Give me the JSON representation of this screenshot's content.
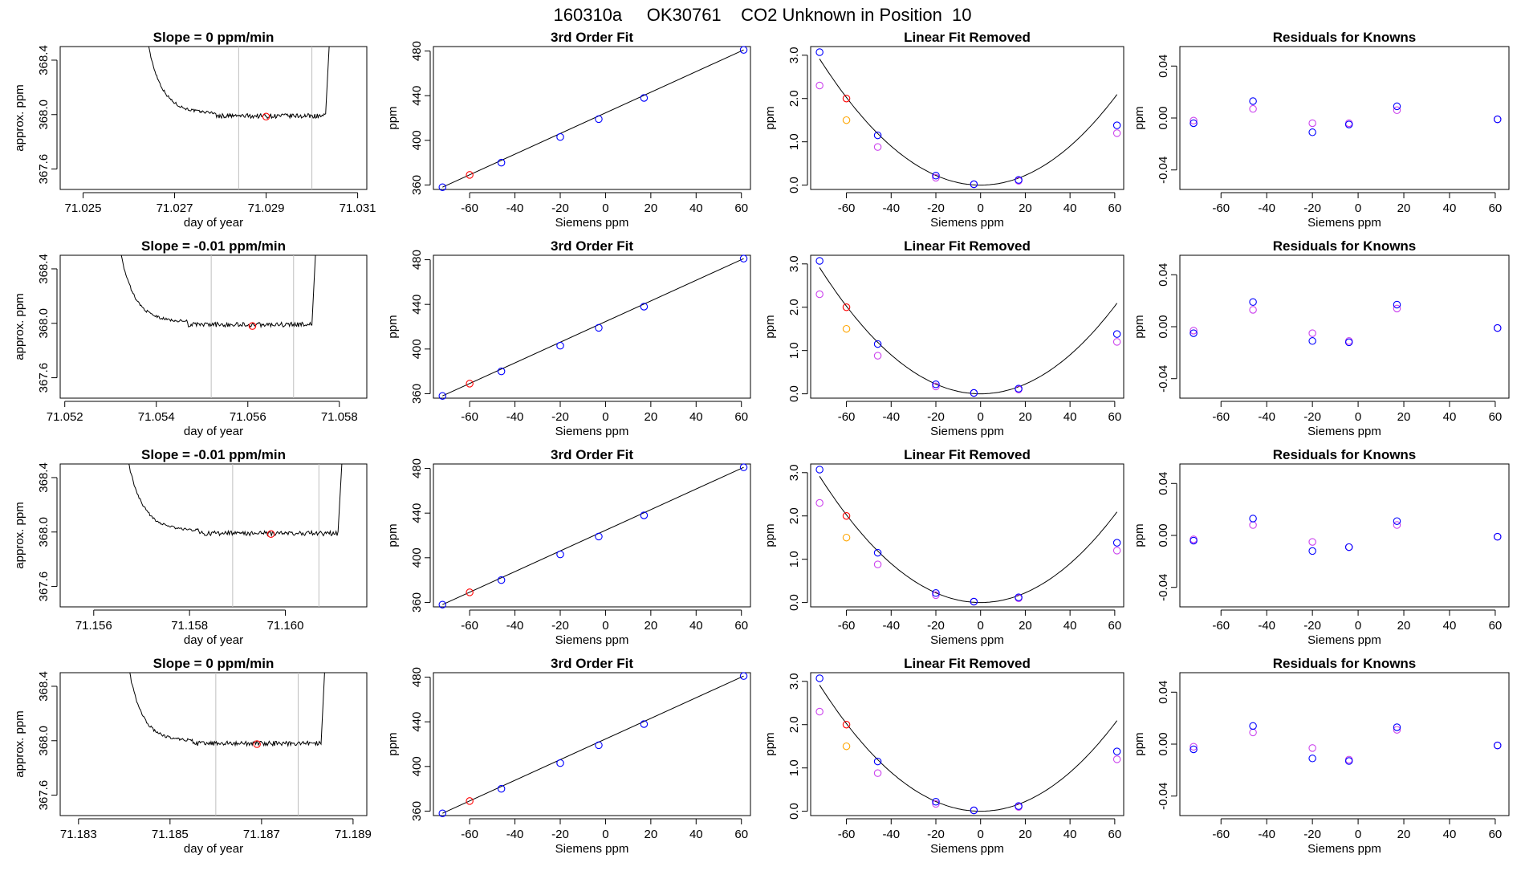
{
  "page_title": "160310a     OK30761    CO2 Unknown in Position  10",
  "colors": {
    "axis": "#000000",
    "trace": "#000000",
    "vline": "#bfbfbf",
    "known_point": "#0000ff",
    "marked_point": "#ff0000",
    "cubic_point": "#cc44ee",
    "orange_point": "#ffa500",
    "fit_line": "#000000"
  },
  "rows": [
    {
      "trace": {
        "title": "Slope =  0  ppm/min",
        "xlabel": "day of year",
        "ylabel": "approx. ppm",
        "xticks": [
          "71.025",
          "71.027",
          "71.029",
          "71.031"
        ],
        "yticks": [
          "367.6",
          "368.0",
          "368.4"
        ],
        "xlim": [
          71.0245,
          71.0312
        ],
        "ylim": [
          367.45,
          368.5
        ],
        "vlines": [
          71.0284,
          71.03
        ],
        "marked_point": {
          "x": 71.029,
          "y": 367.985
        },
        "trace_start": 71.0263,
        "trace_end": 71.0303,
        "plateau": 367.99,
        "drop_x": 71.0279
      },
      "fit": {
        "title": "3rd Order Fit",
        "xlabel": "Siemens ppm",
        "ylabel": "ppm",
        "xticks": [
          "-60",
          "-40",
          "-20",
          "0",
          "20",
          "40",
          "60"
        ],
        "yticks": [
          "360",
          "400",
          "440",
          "480"
        ]
      },
      "linear": {
        "title": "Linear Fit Removed",
        "xlabel": "Siemens ppm",
        "ylabel": "ppm",
        "xticks": [
          "-60",
          "-40",
          "-20",
          "0",
          "20",
          "40",
          "60"
        ],
        "yticks": [
          "0.0",
          "1.0",
          "2.0",
          "3.0"
        ]
      },
      "residuals": {
        "title": "Residuals for Knowns",
        "xlabel": "Siemens ppm",
        "ylabel": "ppm",
        "xticks": [
          "-60",
          "-40",
          "-20",
          "0",
          "20",
          "40",
          "60"
        ],
        "yticks": [
          "-0.04",
          "0.00",
          "0.04"
        ],
        "blue": [
          [
            -72,
            -0.004
          ],
          [
            -46,
            0.013
          ],
          [
            -20,
            -0.011
          ],
          [
            -4,
            -0.005
          ],
          [
            17,
            0.009
          ],
          [
            61,
            -0.001
          ]
        ],
        "violet": [
          [
            -72,
            -0.002
          ],
          [
            -46,
            0.007
          ],
          [
            -20,
            -0.004
          ],
          [
            -4,
            -0.004
          ],
          [
            17,
            0.006
          ],
          [
            61,
            -0.001
          ]
        ]
      }
    },
    {
      "trace": {
        "title": "Slope =  -0.01  ppm/min",
        "xlabel": "day of year",
        "ylabel": "approx. ppm",
        "xticks": [
          "71.052",
          "71.054",
          "71.056",
          "71.058"
        ],
        "yticks": [
          "367.6",
          "368.0",
          "368.4"
        ],
        "xlim": [
          71.0519,
          71.0586
        ],
        "ylim": [
          367.45,
          368.5
        ],
        "vlines": [
          71.0552,
          71.057
        ],
        "marked_point": {
          "x": 71.0561,
          "y": 367.98
        },
        "trace_start": 71.0531,
        "trace_end": 71.0574,
        "plateau": 367.99,
        "drop_x": 71.0547
      },
      "fit": {
        "title": "3rd Order Fit",
        "xlabel": "Siemens ppm",
        "ylabel": "ppm",
        "xticks": [
          "-60",
          "-40",
          "-20",
          "0",
          "20",
          "40",
          "60"
        ],
        "yticks": [
          "360",
          "400",
          "440",
          "480"
        ]
      },
      "linear": {
        "title": "Linear Fit Removed",
        "xlabel": "Siemens ppm",
        "ylabel": "ppm",
        "xticks": [
          "-60",
          "-40",
          "-20",
          "0",
          "20",
          "40",
          "60"
        ],
        "yticks": [
          "0.0",
          "1.0",
          "2.0",
          "3.0"
        ]
      },
      "residuals": {
        "title": "Residuals for Knowns",
        "xlabel": "Siemens ppm",
        "ylabel": "ppm",
        "xticks": [
          "-60",
          "-40",
          "-20",
          "0",
          "20",
          "40",
          "60"
        ],
        "yticks": [
          "-0.04",
          "0.00",
          "0.04"
        ],
        "blue": [
          [
            -72,
            -0.005
          ],
          [
            -46,
            0.019
          ],
          [
            -20,
            -0.011
          ],
          [
            -4,
            -0.012
          ],
          [
            17,
            0.017
          ],
          [
            61,
            -0.001
          ]
        ],
        "violet": [
          [
            -72,
            -0.003
          ],
          [
            -46,
            0.013
          ],
          [
            -20,
            -0.005
          ],
          [
            -4,
            -0.011
          ],
          [
            17,
            0.014
          ],
          [
            61,
            -0.001
          ]
        ]
      }
    },
    {
      "trace": {
        "title": "Slope =  -0.01  ppm/min",
        "xlabel": "day of year",
        "ylabel": "approx. ppm",
        "xticks": [
          "71.156",
          "71.158",
          "71.160"
        ],
        "yticks": [
          "367.6",
          "368.0",
          "368.4"
        ],
        "xlim": [
          71.1553,
          71.1617
        ],
        "ylim": [
          367.45,
          368.5
        ],
        "vlines": [
          71.1589,
          71.1607
        ],
        "marked_point": {
          "x": 71.1597,
          "y": 367.985
        },
        "trace_start": 71.1566,
        "trace_end": 71.1611,
        "plateau": 367.99,
        "drop_x": 71.1582
      },
      "fit": {
        "title": "3rd Order Fit",
        "xlabel": "Siemens ppm",
        "ylabel": "ppm",
        "xticks": [
          "-60",
          "-40",
          "-20",
          "0",
          "20",
          "40",
          "60"
        ],
        "yticks": [
          "360",
          "400",
          "440",
          "480"
        ]
      },
      "linear": {
        "title": "Linear Fit Removed",
        "xlabel": "Siemens ppm",
        "ylabel": "ppm",
        "xticks": [
          "-60",
          "-40",
          "-20",
          "0",
          "20",
          "40",
          "60"
        ],
        "yticks": [
          "0.0",
          "1.0",
          "2.0",
          "3.0"
        ]
      },
      "residuals": {
        "title": "Residuals for Knowns",
        "xlabel": "Siemens ppm",
        "ylabel": "ppm",
        "xticks": [
          "-60",
          "-40",
          "-20",
          "0",
          "20",
          "40",
          "60"
        ],
        "yticks": [
          "-0.04",
          "0.00",
          "0.04"
        ],
        "blue": [
          [
            -72,
            -0.004
          ],
          [
            -46,
            0.013
          ],
          [
            -20,
            -0.012
          ],
          [
            -4,
            -0.009
          ],
          [
            17,
            0.011
          ],
          [
            61,
            -0.001
          ]
        ],
        "violet": [
          [
            -72,
            -0.003
          ],
          [
            -46,
            0.008
          ],
          [
            -20,
            -0.005
          ],
          [
            -4,
            -0.009
          ],
          [
            17,
            0.008
          ],
          [
            61,
            -0.001
          ]
        ]
      }
    },
    {
      "trace": {
        "title": "Slope =  0  ppm/min",
        "xlabel": "day of year",
        "ylabel": "approx. ppm",
        "xticks": [
          "71.183",
          "71.185",
          "71.187",
          "71.189"
        ],
        "yticks": [
          "367.6",
          "368.0",
          "368.4"
        ],
        "xlim": [
          71.1826,
          71.1893
        ],
        "ylim": [
          367.45,
          368.5
        ],
        "vlines": [
          71.186,
          71.1878
        ],
        "marked_point": {
          "x": 71.1869,
          "y": 367.975
        },
        "trace_start": 71.184,
        "trace_end": 71.1883,
        "plateau": 367.98,
        "drop_x": 71.1855
      },
      "fit": {
        "title": "3rd Order Fit",
        "xlabel": "Siemens ppm",
        "ylabel": "ppm",
        "xticks": [
          "-60",
          "-40",
          "-20",
          "0",
          "20",
          "40",
          "60"
        ],
        "yticks": [
          "360",
          "400",
          "440",
          "480"
        ]
      },
      "linear": {
        "title": "Linear Fit Removed",
        "xlabel": "Siemens ppm",
        "ylabel": "ppm",
        "xticks": [
          "-60",
          "-40",
          "-20",
          "0",
          "20",
          "40",
          "60"
        ],
        "yticks": [
          "0.0",
          "1.0",
          "2.0",
          "3.0"
        ]
      },
      "residuals": {
        "title": "Residuals for Knowns",
        "xlabel": "Siemens ppm",
        "ylabel": "ppm",
        "xticks": [
          "-60",
          "-40",
          "-20",
          "0",
          "20",
          "40",
          "60"
        ],
        "yticks": [
          "-0.04",
          "0.00",
          "0.04"
        ],
        "blue": [
          [
            -72,
            -0.004
          ],
          [
            -46,
            0.014
          ],
          [
            -20,
            -0.011
          ],
          [
            -4,
            -0.013
          ],
          [
            17,
            0.013
          ],
          [
            61,
            -0.001
          ]
        ],
        "violet": [
          [
            -72,
            -0.002
          ],
          [
            -46,
            0.009
          ],
          [
            -20,
            -0.003
          ],
          [
            -4,
            -0.012
          ],
          [
            17,
            0.011
          ],
          [
            61,
            -0.001
          ]
        ]
      }
    }
  ],
  "chart_data": [
    {
      "type": "scatter",
      "title": "3rd Order Fit",
      "xlabel": "Siemens ppm",
      "ylabel": "ppm",
      "xlim": [
        -76,
        64
      ],
      "ylim": [
        356,
        484
      ],
      "series": [
        {
          "points": [
            [
              -72,
              358
            ],
            [
              -46,
              380
            ],
            [
              -20,
              403
            ],
            [
              -3,
              419
            ],
            [
              17,
              438
            ],
            [
              61,
              481
            ]
          ]
        },
        {
          "points": [
            [
              -60,
              369
            ]
          ]
        }
      ]
    },
    {
      "type": "scatter",
      "title": "Linear Fit Removed",
      "xlabel": "Siemens ppm",
      "ylabel": "ppm",
      "xlim": [
        -76,
        64
      ],
      "ylim": [
        -0.1,
        3.2
      ],
      "series": [
        {
          "points": [
            [
              -72,
              3.07
            ],
            [
              -46,
              1.15
            ],
            [
              -20,
              0.22
            ],
            [
              -3,
              0.02
            ],
            [
              17,
              0.12
            ],
            [
              61,
              1.38
            ]
          ]
        },
        {
          "points": [
            [
              -72,
              2.3
            ],
            [
              -46,
              0.88
            ],
            [
              -20,
              0.17
            ],
            [
              -3,
              0.02
            ],
            [
              17,
              0.1
            ],
            [
              61,
              1.2
            ]
          ]
        },
        {
          "points": [
            [
              -60,
              1.5
            ]
          ]
        },
        {
          "points": [
            [
              -60,
              2.0
            ]
          ]
        }
      ],
      "curve": {
        "type": "quadratic",
        "vertex_x": 0,
        "vertex_y": 0,
        "coef": 0.000375
      }
    }
  ]
}
